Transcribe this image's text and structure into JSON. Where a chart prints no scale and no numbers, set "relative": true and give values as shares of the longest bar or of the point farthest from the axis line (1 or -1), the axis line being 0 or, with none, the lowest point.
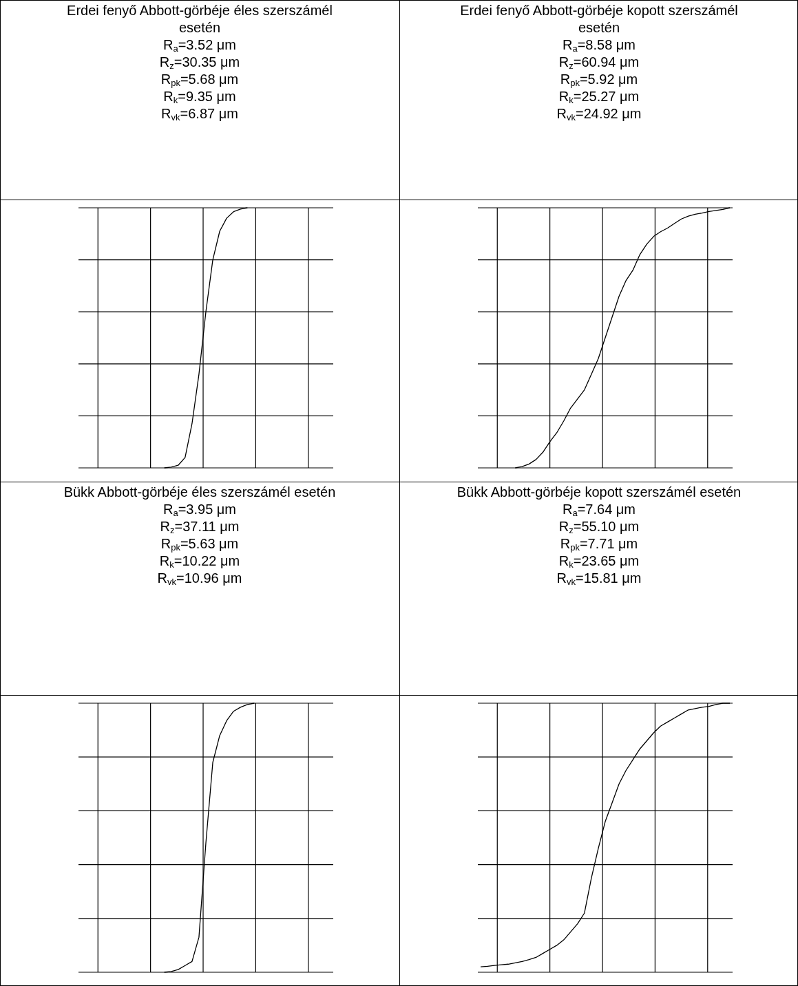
{
  "chart_data": [
    {
      "type": "line",
      "title": "Erdei fenyő Abbott-görbéje éles szerszámél esetén",
      "annotations": [
        "R$_{a}$=3.52 μm",
        "R$_{z}$=30.35 μm",
        "R$_{pk}$=5.68 μm",
        "R$_{k}$=9.35 μm",
        "R$_{vk}$=6.87 μm"
      ],
      "relative": true,
      "grid": true,
      "categories": [
        null,
        null,
        null,
        null,
        null,
        null,
        null,
        null,
        null,
        null,
        null,
        null,
        null,
        null,
        null,
        null,
        null,
        null,
        null,
        null,
        null,
        null,
        null,
        null,
        null,
        null,
        null,
        null,
        null,
        null,
        null,
        null,
        null,
        null,
        null,
        null,
        null
      ],
      "series": [
        {
          "color": "#000000",
          "values": [
            null,
            null,
            null,
            null,
            null,
            null,
            null,
            null,
            null,
            null,
            null,
            null,
            0,
            0.003,
            0.01,
            0.04,
            0.17,
            0.36,
            0.6,
            0.8,
            0.91,
            0.96,
            0.985,
            0.995,
            1,
            null,
            null,
            null,
            null,
            null,
            null,
            null,
            null,
            null,
            null,
            null,
            null
          ]
        }
      ]
    },
    {
      "type": "line",
      "title": "Erdei fenyő Abbott-görbéje kopott szerszámél esetén",
      "annotations": [
        "R$_{a}$=8.58 μm",
        "R$_{z}$=60.94 μm",
        "R$_{pk}$=5.92 μm",
        "R$_{k}$=25.27 μm",
        "R$_{vk}$=24.92 μm"
      ],
      "relative": true,
      "grid": true,
      "categories": [
        null,
        null,
        null,
        null,
        null,
        null,
        null,
        null,
        null,
        null,
        null,
        null,
        null,
        null,
        null,
        null,
        null,
        null,
        null,
        null,
        null,
        null,
        null,
        null,
        null,
        null,
        null,
        null,
        null,
        null,
        null,
        null,
        null,
        null,
        null,
        null,
        null
      ],
      "series": [
        {
          "color": "#000000",
          "values": [
            null,
            null,
            null,
            null,
            null,
            0,
            0.005,
            0.015,
            0.032,
            0.06,
            0.1,
            0.135,
            0.18,
            0.23,
            0.265,
            0.3,
            0.36,
            0.42,
            0.5,
            0.58,
            0.66,
            0.72,
            0.76,
            0.82,
            0.86,
            0.89,
            0.908,
            0.922,
            0.94,
            0.957,
            0.968,
            0.975,
            0.98,
            0.986,
            0.99,
            0.994,
            1
          ]
        }
      ]
    },
    {
      "type": "line",
      "title": "Bükk Abbott-görbéje éles szerszámél esetén",
      "annotations": [
        "R$_{a}$=3.95 μm",
        "R$_{z}$=37.11 μm",
        "R$_{pk}$=5.63 μm",
        "R$_{k}$=10.22 μm",
        "R$_{vk}$=10.96 μm"
      ],
      "relative": true,
      "grid": true,
      "categories": [
        null,
        null,
        null,
        null,
        null,
        null,
        null,
        null,
        null,
        null,
        null,
        null,
        null,
        null,
        null,
        null,
        null,
        null,
        null,
        null,
        null,
        null,
        null,
        null,
        null,
        null,
        null,
        null,
        null,
        null,
        null,
        null,
        null,
        null,
        null,
        null,
        null
      ],
      "series": [
        {
          "color": "#000000",
          "values": [
            null,
            null,
            null,
            null,
            null,
            null,
            null,
            null,
            null,
            null,
            null,
            null,
            0,
            0.003,
            0.01,
            0.025,
            0.04,
            0.13,
            0.48,
            0.78,
            0.88,
            0.935,
            0.97,
            0.985,
            0.995,
            1,
            null,
            null,
            null,
            null,
            null,
            null,
            null,
            null,
            null,
            null,
            null
          ]
        }
      ]
    },
    {
      "type": "line",
      "title": "Bükk Abbott-görbéje kopott szerszámél esetén",
      "annotations": [
        "R$_{a}$=7.64 μm",
        "R$_{z}$=55.10 μm",
        "R$_{pk}$=7.71 μm",
        "R$_{k}$=23.65 μm",
        "R$_{vk}$=15.81 μm"
      ],
      "relative": true,
      "grid": true,
      "categories": [
        null,
        null,
        null,
        null,
        null,
        null,
        null,
        null,
        null,
        null,
        null,
        null,
        null,
        null,
        null,
        null,
        null,
        null,
        null,
        null,
        null,
        null,
        null,
        null,
        null,
        null,
        null,
        null,
        null,
        null,
        null,
        null,
        null,
        null,
        null,
        null,
        null
      ],
      "series": [
        {
          "color": "#000000",
          "values": [
            0.02,
            0.022,
            0.025,
            0.028,
            0.03,
            0.035,
            0.04,
            0.047,
            0.055,
            0.07,
            0.085,
            0.1,
            0.12,
            0.15,
            0.18,
            0.22,
            0.35,
            0.46,
            0.56,
            0.63,
            0.7,
            0.75,
            0.79,
            0.83,
            0.86,
            0.89,
            0.915,
            0.93,
            0.945,
            0.96,
            0.975,
            0.98,
            0.985,
            0.988,
            0.995,
            1,
            1
          ]
        }
      ]
    }
  ]
}
